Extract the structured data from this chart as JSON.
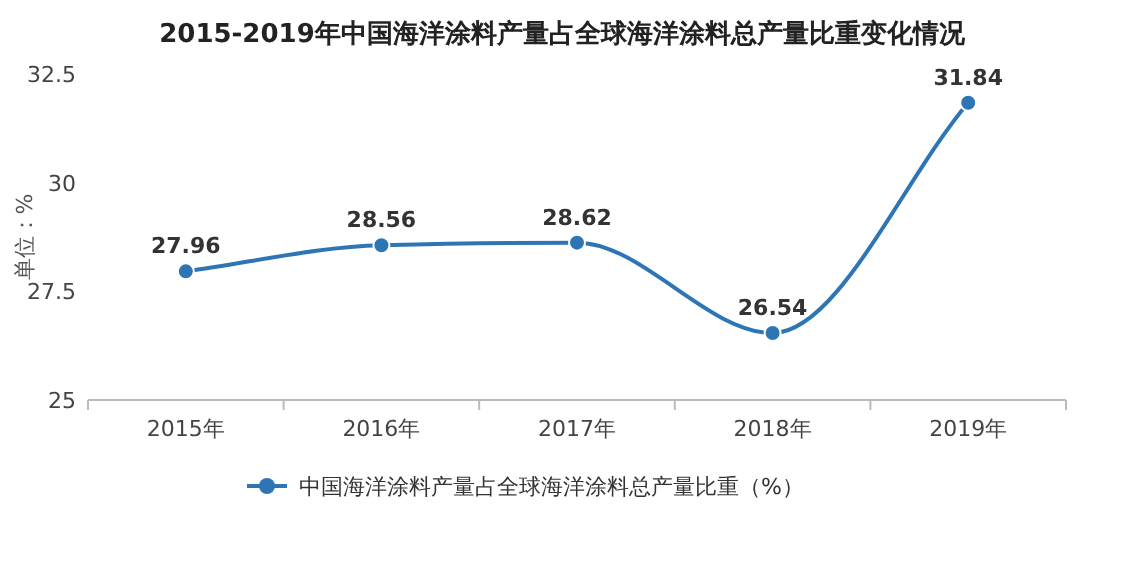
{
  "chart_data": {
    "type": "line",
    "title": "2015-2019年中国海洋涂料产量占全球海洋涂料总产量比重变化情况",
    "ylabel": "单位：%",
    "categories": [
      "2015年",
      "2016年",
      "2017年",
      "2018年",
      "2019年"
    ],
    "series": [
      {
        "name": "中国海洋涂料产量占全球海洋涂料总产量比重（%）",
        "color": "#2e75b6",
        "values": [
          27.96,
          28.56,
          28.62,
          26.54,
          31.84
        ]
      }
    ],
    "ylim": [
      25,
      32.5
    ],
    "yticks": [
      25,
      27.5,
      30,
      32.5
    ],
    "data_labels": true,
    "marker": "circle",
    "legend": "bottom"
  }
}
